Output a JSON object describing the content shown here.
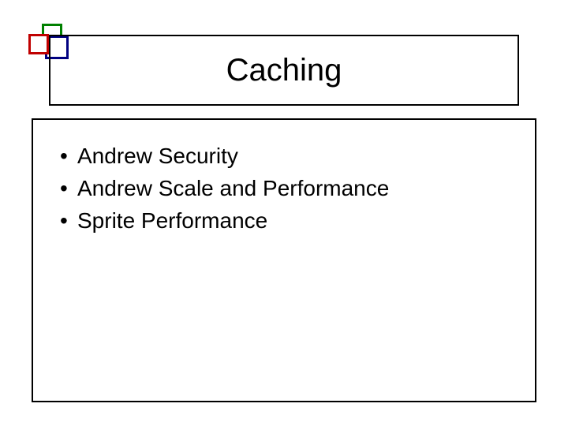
{
  "slide": {
    "background_color": "#ffffff",
    "title": {
      "text": "Caching",
      "fontsize": 40,
      "color": "#000000",
      "border_color": "#000000",
      "border_width": 2
    },
    "body": {
      "border_color": "#000000",
      "border_width": 2,
      "bullets": [
        "Andrew Security",
        "Andrew Scale and Performance",
        "Sprite Performance"
      ],
      "bullet_fontsize": 28,
      "bullet_color": "#000000"
    },
    "icon": {
      "squares": [
        {
          "name": "green",
          "color": "#008000",
          "size": 26,
          "border_width": 3
        },
        {
          "name": "blue",
          "color": "#000080",
          "size": 30,
          "border_width": 3
        },
        {
          "name": "red",
          "color": "#c00000",
          "size": 26,
          "border_width": 3
        }
      ]
    }
  }
}
